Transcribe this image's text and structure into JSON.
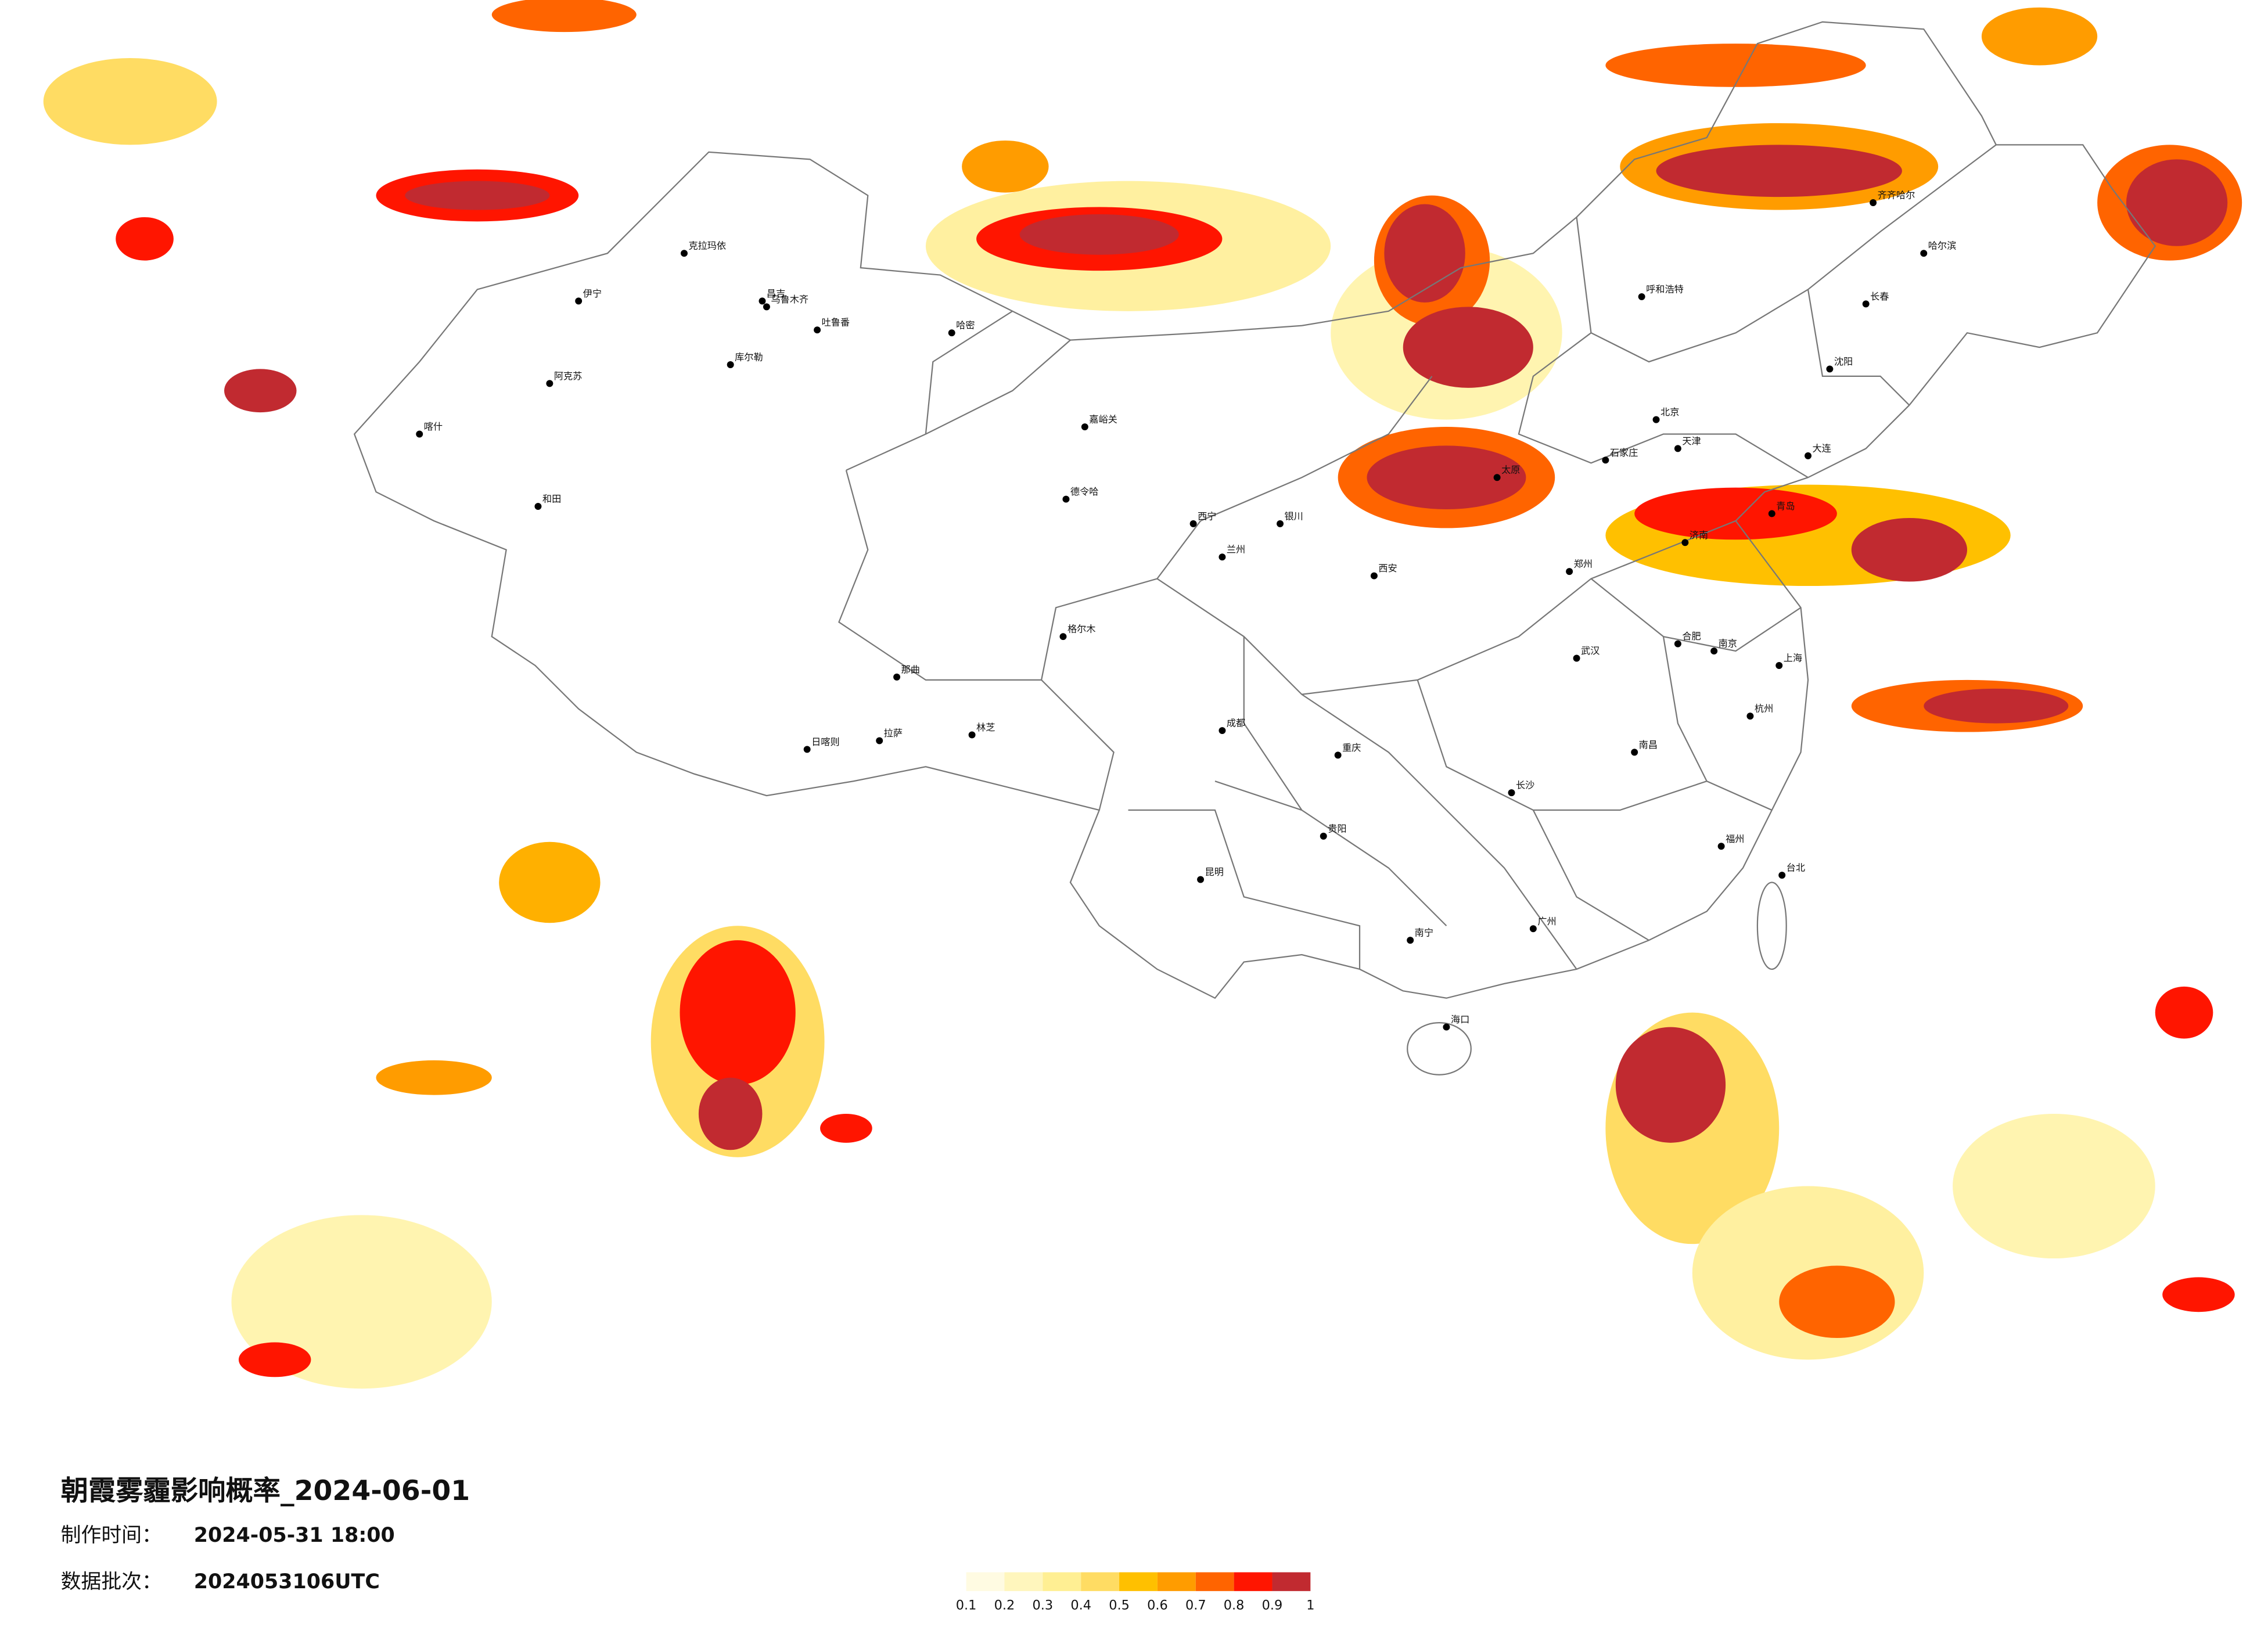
{
  "title": "朝霞雾霾影响概率_2024-06-01",
  "info": [
    {
      "label": "制作时间：",
      "value": "2024-05-31 18:00"
    },
    {
      "label": "数据批次：",
      "value": "2024053106UTC"
    }
  ],
  "legend": {
    "colors": [
      "#fffbe2",
      "#fff6bd",
      "#ffef93",
      "#ffdc63",
      "#ffc000",
      "#ff9c00",
      "#ff6400",
      "#ff1500",
      "#c12a30"
    ],
    "ticks": [
      0.1,
      0.2,
      0.3,
      0.4,
      0.5,
      0.6,
      0.7,
      0.8,
      0.9,
      1
    ]
  },
  "cities": [
    "克拉玛依",
    "昌吉",
    "乌鲁木齐",
    "吐鲁番",
    "哈密",
    "伊宁",
    "阿克苏",
    "库尔勒",
    "喀什",
    "和田",
    "嘉峪关",
    "格尔木",
    "德令哈",
    "拉萨",
    "日喀则",
    "林芝",
    "那曲",
    "西宁",
    "兰州",
    "银川",
    "呼和浩特",
    "北京",
    "天津",
    "石家庄",
    "太原",
    "济南",
    "郑州",
    "西安",
    "成都",
    "重庆",
    "贵阳",
    "昆明",
    "南宁",
    "海口",
    "广州",
    "长沙",
    "武汉",
    "南昌",
    "合肥",
    "南京",
    "上海",
    "杭州",
    "福州",
    "台北",
    "沈阳",
    "长春",
    "哈尔滨",
    "齐齐哈尔",
    "大连",
    "青岛"
  ]
}
